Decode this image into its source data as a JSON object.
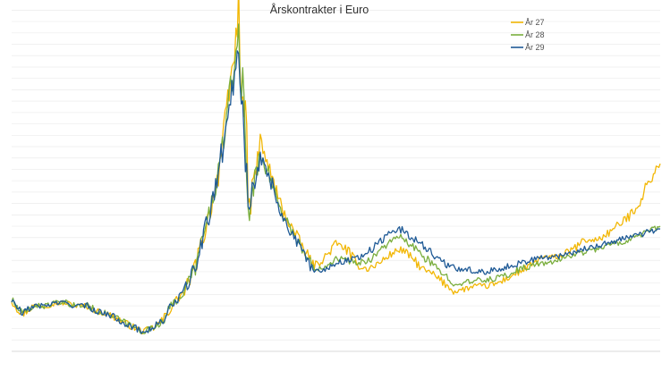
{
  "chart_data": {
    "type": "line",
    "title": "Årskontrakter i Euro",
    "xlabel": "",
    "ylabel": "",
    "ylim": [
      25,
      86
    ],
    "grid": true,
    "legend_position": "top-right",
    "x": [
      0,
      3,
      6,
      9,
      12,
      15,
      18,
      21,
      24,
      27,
      30,
      33,
      36,
      39,
      42,
      45,
      48,
      51,
      54,
      57,
      60,
      63,
      66,
      69,
      72,
      75,
      78,
      81,
      84,
      87,
      90,
      93,
      96,
      99,
      102,
      105,
      108,
      111,
      114,
      117,
      120,
      123,
      126,
      129,
      132,
      135,
      138,
      141,
      144,
      147,
      150,
      153,
      156,
      159,
      162,
      165,
      168,
      171,
      174,
      177,
      180
    ],
    "series": [
      {
        "name": "År 27",
        "color": "#f2b705",
        "values": [
          34,
          31.5,
          33,
          33,
          33.5,
          33.5,
          33,
          33,
          32,
          31.5,
          30.5,
          29.5,
          28.5,
          29,
          30.5,
          33.5,
          35.5,
          40,
          47,
          55,
          68,
          84,
          50,
          62,
          56,
          50,
          46.5,
          43,
          40,
          41.5,
          44,
          43,
          40,
          39.5,
          40.5,
          42,
          43,
          41.5,
          39.5,
          38.5,
          37,
          35.5,
          36,
          36.5,
          36.5,
          37,
          38,
          39,
          40,
          41.5,
          41.5,
          42,
          43,
          44.5,
          44.5,
          45.5,
          47,
          48.5,
          51,
          55,
          58
        ]
      },
      {
        "name": "År 28",
        "color": "#7aae3d",
        "values": [
          34,
          31.5,
          33,
          33,
          33.5,
          33.5,
          33,
          33,
          32,
          31.5,
          30.5,
          29.5,
          28.5,
          29,
          30.5,
          33.5,
          35.5,
          40,
          47,
          55,
          67,
          81,
          50,
          60,
          55,
          49.5,
          46,
          42.5,
          39.5,
          40,
          41.5,
          41,
          40.5,
          41,
          42.5,
          44.5,
          45,
          43.5,
          42,
          40,
          38.5,
          37,
          37,
          37.5,
          37.5,
          38,
          38.5,
          39.5,
          40,
          40.5,
          40.5,
          41.5,
          42,
          42.5,
          43,
          43.5,
          44,
          44.5,
          45.5,
          46,
          47
        ]
      },
      {
        "name": "År 29",
        "color": "#1f5a96",
        "values": [
          34,
          31.5,
          33,
          33,
          33.5,
          33.5,
          33,
          33,
          32,
          31.5,
          30.5,
          29.5,
          28.5,
          29,
          30.5,
          33.5,
          35.5,
          40,
          47,
          55,
          66,
          79,
          51,
          59,
          55,
          49,
          45.5,
          42,
          39,
          39.5,
          40.5,
          41,
          41.5,
          42.5,
          44,
          46,
          46.5,
          45,
          44,
          42,
          40.5,
          39.5,
          39.5,
          39,
          39,
          39.5,
          40,
          40.5,
          41,
          41.5,
          41.5,
          42,
          42.5,
          43,
          43.5,
          44,
          44.5,
          45,
          45.5,
          46,
          46.5
        ]
      }
    ]
  }
}
